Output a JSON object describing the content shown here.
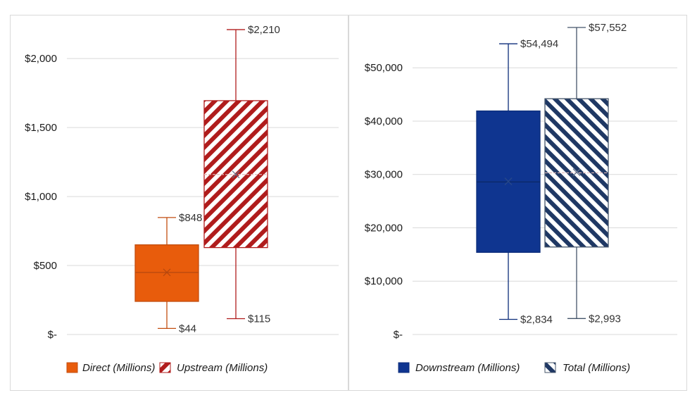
{
  "chart_data": [
    {
      "type": "box",
      "ylim": [
        0,
        2200
      ],
      "yticks": [
        {
          "value": 0,
          "label": "$-"
        },
        {
          "value": 500,
          "label": "$500"
        },
        {
          "value": 1000,
          "label": "$1,000"
        },
        {
          "value": 1500,
          "label": "$1,500"
        },
        {
          "value": 2000,
          "label": "$2,000"
        }
      ],
      "grid": true,
      "legend_position": "bottom",
      "series": [
        {
          "name": "Direct (Millions)",
          "color": "#e85c0c",
          "stroke": "#c24e10",
          "pattern": "solid",
          "min": 44,
          "q1": 240,
          "median": 450,
          "mean": 450,
          "q3": 650,
          "max": 848,
          "min_label": "$44",
          "max_label": "$848"
        },
        {
          "name": "Upstream (Millions)",
          "color": "#b01c1c",
          "stroke": "#b01c1c",
          "pattern": "diagonal-up",
          "min": 115,
          "q1": 630,
          "median": 1160,
          "mean": 1160,
          "q3": 1695,
          "max": 2210,
          "min_label": "$115",
          "max_label": "$2,210"
        }
      ]
    },
    {
      "type": "box",
      "ylim": [
        0,
        57552
      ],
      "yticks": [
        {
          "value": 0,
          "label": "$-"
        },
        {
          "value": 10000,
          "label": "$10,000"
        },
        {
          "value": 20000,
          "label": "$20,000"
        },
        {
          "value": 30000,
          "label": "$30,000"
        },
        {
          "value": 40000,
          "label": "$40,000"
        },
        {
          "value": 50000,
          "label": "$50,000"
        }
      ],
      "grid": true,
      "legend_position": "bottom",
      "series": [
        {
          "name": "Downstream (Millions)",
          "color": "#0f3590",
          "stroke": "#0c2d7a",
          "pattern": "solid",
          "min": 2834,
          "q1": 15400,
          "median": 28600,
          "mean": 28700,
          "q3": 41900,
          "max": 54494,
          "min_label": "$2,834",
          "max_label": "$54,494"
        },
        {
          "name": "Total (Millions)",
          "color": "#1f3864",
          "stroke": "#44546a",
          "pattern": "diagonal-down",
          "min": 2993,
          "q1": 16400,
          "median": 30300,
          "mean": 30400,
          "q3": 44200,
          "max": 57552,
          "min_label": "$2,993",
          "max_label": "$57,552"
        }
      ]
    }
  ]
}
